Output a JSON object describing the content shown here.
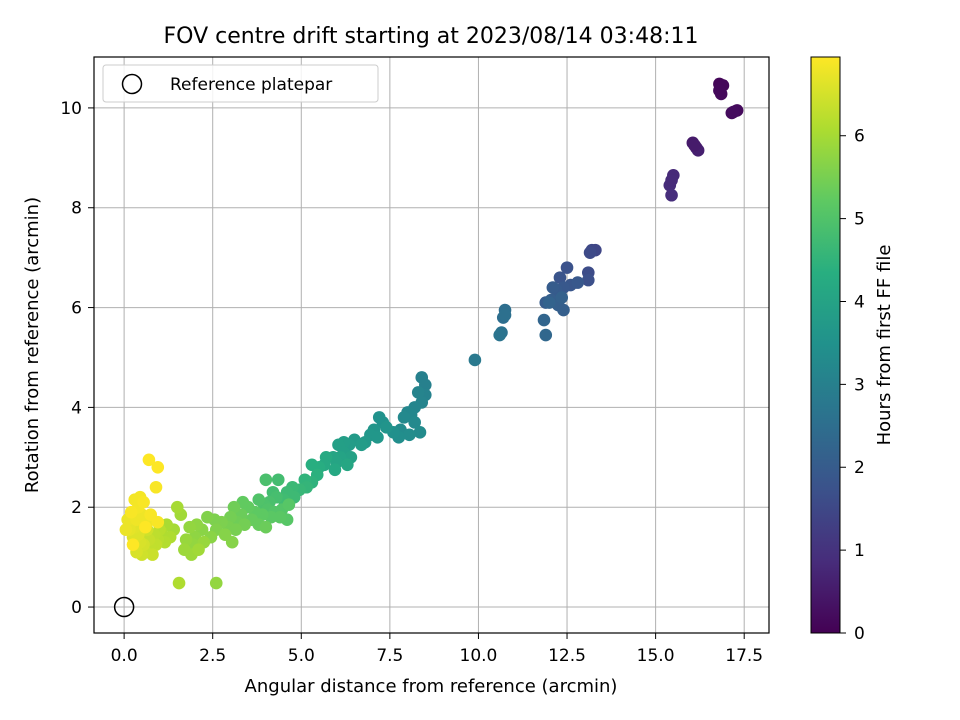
{
  "chart_data": {
    "type": "scatter",
    "title": "FOV centre drift starting at 2023/08/14 03:48:11",
    "xlabel": "Angular distance from reference (arcmin)",
    "ylabel": "Rotation from reference (arcmin)",
    "xlim": [
      -0.85,
      18.2
    ],
    "ylim": [
      -0.52,
      11.02
    ],
    "xticks": [
      0.0,
      2.5,
      5.0,
      7.5,
      10.0,
      12.5,
      15.0,
      17.5
    ],
    "xtick_labels": [
      "0.0",
      "2.5",
      "5.0",
      "7.5",
      "10.0",
      "12.5",
      "15.0",
      "17.5"
    ],
    "yticks": [
      0,
      2,
      4,
      6,
      8,
      10
    ],
    "ytick_labels": [
      "0",
      "2",
      "4",
      "6",
      "8",
      "10"
    ],
    "grid": true,
    "legend": {
      "placement": "top-left",
      "entries": [
        "Reference platepar"
      ]
    },
    "reference_point": {
      "label": "Reference platepar",
      "x": 0.0,
      "y": 0.0
    },
    "colorbar": {
      "label": "Hours from first FF file",
      "colormap": "viridis",
      "range": [
        0,
        6.95
      ],
      "ticks": [
        0,
        1,
        2,
        3,
        4,
        5,
        6
      ],
      "tick_labels": [
        "0",
        "1",
        "2",
        "3",
        "4",
        "5",
        "6"
      ]
    },
    "series": [
      {
        "points": [
          [
            16.8,
            10.48,
            0.1
          ],
          [
            16.9,
            10.45,
            0.12
          ],
          [
            16.85,
            10.28,
            0.15
          ],
          [
            17.15,
            9.9,
            0.2
          ],
          [
            17.3,
            9.95,
            0.18
          ],
          [
            17.2,
            9.92,
            0.22
          ],
          [
            16.8,
            10.35,
            0.14
          ],
          [
            16.05,
            9.3,
            0.5
          ],
          [
            16.15,
            9.2,
            0.55
          ],
          [
            16.2,
            9.15,
            0.6
          ],
          [
            16.1,
            9.25,
            0.52
          ],
          [
            15.5,
            8.65,
            0.8
          ],
          [
            15.4,
            8.45,
            0.85
          ],
          [
            15.45,
            8.25,
            0.9
          ],
          [
            15.45,
            8.55,
            0.82
          ],
          [
            13.2,
            7.15,
            1.5
          ],
          [
            13.3,
            7.15,
            1.45
          ],
          [
            13.15,
            7.1,
            1.55
          ],
          [
            13.1,
            6.7,
            1.6
          ],
          [
            13.1,
            6.55,
            1.7
          ],
          [
            12.5,
            6.8,
            1.75
          ],
          [
            12.3,
            6.6,
            1.8
          ],
          [
            12.6,
            6.45,
            1.85
          ],
          [
            12.8,
            6.5,
            1.9
          ],
          [
            12.4,
            6.4,
            1.9
          ],
          [
            12.2,
            6.35,
            1.95
          ],
          [
            12.1,
            6.4,
            2.0
          ],
          [
            11.9,
            6.1,
            2.0
          ],
          [
            12.05,
            6.15,
            2.05
          ],
          [
            12.25,
            6.05,
            2.1
          ],
          [
            12.4,
            5.95,
            2.1
          ],
          [
            12.35,
            6.2,
            2.15
          ],
          [
            12.0,
            6.1,
            2.2
          ],
          [
            11.85,
            5.75,
            2.25
          ],
          [
            11.9,
            5.45,
            2.3
          ],
          [
            10.75,
            5.95,
            2.5
          ],
          [
            10.7,
            5.8,
            2.5
          ],
          [
            10.75,
            5.85,
            2.55
          ],
          [
            10.65,
            5.5,
            2.6
          ],
          [
            10.6,
            5.45,
            2.65
          ],
          [
            9.9,
            4.95,
            2.8
          ],
          [
            8.4,
            4.6,
            3.0
          ],
          [
            8.5,
            4.45,
            3.0
          ],
          [
            8.5,
            4.25,
            3.05
          ],
          [
            8.3,
            4.3,
            3.1
          ],
          [
            8.4,
            4.1,
            3.1
          ],
          [
            8.2,
            4.0,
            3.15
          ],
          [
            8.0,
            3.9,
            3.2
          ],
          [
            8.1,
            3.85,
            3.2
          ],
          [
            7.9,
            3.8,
            3.25
          ],
          [
            8.2,
            3.7,
            3.25
          ],
          [
            7.8,
            3.55,
            3.3
          ],
          [
            8.35,
            3.5,
            3.3
          ],
          [
            8.05,
            3.45,
            3.35
          ],
          [
            7.75,
            3.4,
            3.4
          ],
          [
            7.6,
            3.5,
            3.45
          ],
          [
            7.3,
            3.7,
            3.5
          ],
          [
            7.2,
            3.8,
            3.5
          ],
          [
            7.4,
            3.6,
            3.55
          ],
          [
            7.05,
            3.55,
            3.6
          ],
          [
            6.95,
            3.45,
            3.65
          ],
          [
            7.15,
            3.4,
            3.65
          ],
          [
            6.8,
            3.3,
            3.7
          ],
          [
            6.5,
            3.35,
            3.75
          ],
          [
            6.7,
            3.25,
            3.8
          ],
          [
            6.35,
            3.25,
            3.8
          ],
          [
            6.2,
            3.3,
            3.85
          ],
          [
            6.05,
            3.25,
            3.9
          ],
          [
            6.2,
            3.1,
            3.9
          ],
          [
            6.4,
            3.0,
            3.95
          ],
          [
            6.1,
            3.0,
            4.0
          ],
          [
            5.9,
            3.0,
            4.05
          ],
          [
            6.0,
            2.9,
            4.05
          ],
          [
            6.3,
            2.85,
            4.1
          ],
          [
            5.95,
            2.75,
            4.15
          ],
          [
            5.7,
            3.0,
            4.2
          ],
          [
            5.65,
            2.85,
            4.2
          ],
          [
            5.5,
            2.8,
            4.3
          ],
          [
            5.3,
            2.85,
            4.35
          ],
          [
            5.45,
            2.65,
            4.4
          ],
          [
            5.3,
            2.5,
            4.45
          ],
          [
            5.1,
            2.55,
            4.5
          ],
          [
            5.15,
            2.4,
            4.55
          ],
          [
            4.95,
            2.35,
            4.6
          ],
          [
            4.75,
            2.4,
            4.65
          ],
          [
            4.6,
            2.3,
            4.7
          ],
          [
            4.8,
            2.2,
            4.7
          ],
          [
            4.5,
            2.15,
            4.75
          ],
          [
            4.35,
            2.55,
            4.8
          ],
          [
            4.2,
            2.3,
            4.8
          ],
          [
            4.3,
            2.2,
            4.85
          ],
          [
            4.1,
            2.1,
            4.9
          ],
          [
            4.0,
            2.55,
            4.9
          ],
          [
            3.95,
            2.05,
            4.95
          ],
          [
            3.8,
            2.15,
            5.0
          ],
          [
            4.05,
            1.95,
            5.0
          ],
          [
            4.25,
            1.9,
            5.05
          ],
          [
            4.45,
            1.95,
            5.05
          ],
          [
            4.65,
            2.05,
            5.1
          ],
          [
            4.6,
            1.75,
            5.1
          ],
          [
            4.4,
            1.8,
            5.15
          ],
          [
            4.15,
            1.8,
            5.15
          ],
          [
            3.9,
            1.85,
            5.2
          ],
          [
            3.7,
            1.9,
            5.2
          ],
          [
            3.5,
            2.0,
            5.25
          ],
          [
            3.35,
            2.1,
            5.25
          ],
          [
            3.6,
            1.75,
            5.3
          ],
          [
            3.8,
            1.65,
            5.3
          ],
          [
            4.0,
            1.6,
            5.35
          ],
          [
            3.3,
            1.85,
            5.35
          ],
          [
            3.1,
            2.0,
            5.4
          ],
          [
            3.2,
            1.7,
            5.4
          ],
          [
            3.4,
            1.65,
            5.45
          ],
          [
            3.0,
            1.8,
            5.45
          ],
          [
            2.95,
            1.6,
            5.5
          ],
          [
            3.15,
            1.55,
            5.5
          ],
          [
            2.75,
            1.7,
            5.55
          ],
          [
            2.55,
            1.75,
            5.55
          ],
          [
            2.35,
            1.8,
            5.6
          ],
          [
            2.6,
            1.55,
            5.6
          ],
          [
            2.85,
            1.45,
            5.65
          ],
          [
            3.05,
            1.3,
            5.65
          ],
          [
            2.45,
            1.4,
            5.7
          ],
          [
            2.2,
            1.55,
            5.7
          ],
          [
            2.05,
            1.65,
            5.75
          ],
          [
            2.0,
            1.4,
            5.75
          ],
          [
            1.85,
            1.6,
            5.8
          ],
          [
            1.95,
            1.25,
            5.8
          ],
          [
            2.25,
            1.3,
            5.85
          ],
          [
            1.75,
            1.35,
            5.85
          ],
          [
            1.7,
            1.15,
            5.9
          ],
          [
            1.9,
            1.05,
            5.9
          ],
          [
            2.1,
            1.15,
            5.95
          ],
          [
            1.6,
            1.85,
            5.95
          ],
          [
            1.5,
            2.0,
            6.0
          ],
          [
            1.4,
            1.55,
            6.0
          ],
          [
            2.6,
            0.48,
            5.8
          ],
          [
            1.55,
            0.48,
            6.1
          ],
          [
            1.2,
            1.65,
            6.05
          ],
          [
            1.05,
            1.5,
            6.1
          ],
          [
            1.3,
            1.4,
            6.1
          ],
          [
            1.15,
            1.3,
            6.15
          ],
          [
            0.95,
            1.35,
            6.2
          ],
          [
            1.0,
            1.55,
            6.2
          ],
          [
            0.85,
            1.45,
            6.25
          ],
          [
            0.9,
            1.25,
            6.3
          ],
          [
            0.75,
            1.2,
            6.3
          ],
          [
            0.7,
            1.35,
            6.35
          ],
          [
            0.6,
            1.1,
            6.4
          ],
          [
            0.8,
            1.05,
            6.4
          ],
          [
            0.5,
            1.05,
            6.45
          ],
          [
            0.65,
            1.55,
            6.45
          ],
          [
            0.55,
            1.25,
            6.5
          ],
          [
            0.45,
            1.3,
            6.55
          ],
          [
            0.35,
            1.1,
            6.55
          ],
          [
            0.4,
            1.45,
            6.6
          ],
          [
            0.25,
            1.4,
            6.6
          ],
          [
            0.3,
            1.6,
            6.65
          ],
          [
            0.15,
            1.55,
            6.7
          ],
          [
            0.2,
            1.7,
            6.7
          ],
          [
            0.05,
            1.55,
            6.75
          ],
          [
            0.1,
            1.75,
            6.75
          ],
          [
            0.35,
            1.75,
            6.8
          ],
          [
            0.5,
            1.85,
            6.8
          ],
          [
            0.65,
            1.7,
            6.8
          ],
          [
            0.4,
            2.0,
            6.85
          ],
          [
            0.3,
            2.15,
            6.85
          ],
          [
            0.45,
            2.2,
            6.85
          ],
          [
            0.55,
            2.1,
            6.9
          ],
          [
            0.2,
            1.9,
            6.9
          ],
          [
            0.75,
            1.85,
            6.9
          ],
          [
            0.95,
            1.7,
            6.9
          ],
          [
            0.9,
            2.4,
            6.9
          ],
          [
            0.7,
            2.95,
            6.95
          ],
          [
            0.95,
            2.8,
            6.95
          ],
          [
            0.6,
            1.6,
            6.95
          ],
          [
            0.25,
            1.25,
            6.95
          ]
        ]
      }
    ]
  }
}
